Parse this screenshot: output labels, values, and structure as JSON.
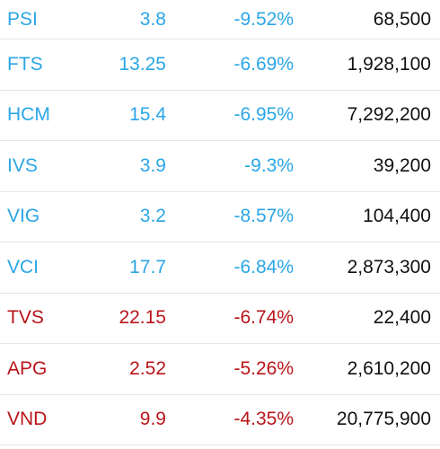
{
  "colors": {
    "decline_blue": "#2aa6e6",
    "decline_red": "#b8141a",
    "volume_text": "#111111",
    "divider": "#e6e6e6"
  },
  "rows": [
    {
      "symbol": "PSI",
      "price": "3.8",
      "change": "-9.52%",
      "volume": "68,500",
      "color": "blue"
    },
    {
      "symbol": "FTS",
      "price": "13.25",
      "change": "-6.69%",
      "volume": "1,928,100",
      "color": "blue"
    },
    {
      "symbol": "HCM",
      "price": "15.4",
      "change": "-6.95%",
      "volume": "7,292,200",
      "color": "blue"
    },
    {
      "symbol": "IVS",
      "price": "3.9",
      "change": "-9.3%",
      "volume": "39,200",
      "color": "blue"
    },
    {
      "symbol": "VIG",
      "price": "3.2",
      "change": "-8.57%",
      "volume": "104,400",
      "color": "blue"
    },
    {
      "symbol": "VCI",
      "price": "17.7",
      "change": "-6.84%",
      "volume": "2,873,300",
      "color": "blue"
    },
    {
      "symbol": "TVS",
      "price": "22.15",
      "change": "-6.74%",
      "volume": "22,400",
      "color": "red"
    },
    {
      "symbol": "APG",
      "price": "2.52",
      "change": "-5.26%",
      "volume": "2,610,200",
      "color": "red"
    },
    {
      "symbol": "VND",
      "price": "9.9",
      "change": "-4.35%",
      "volume": "20,775,900",
      "color": "red"
    }
  ]
}
